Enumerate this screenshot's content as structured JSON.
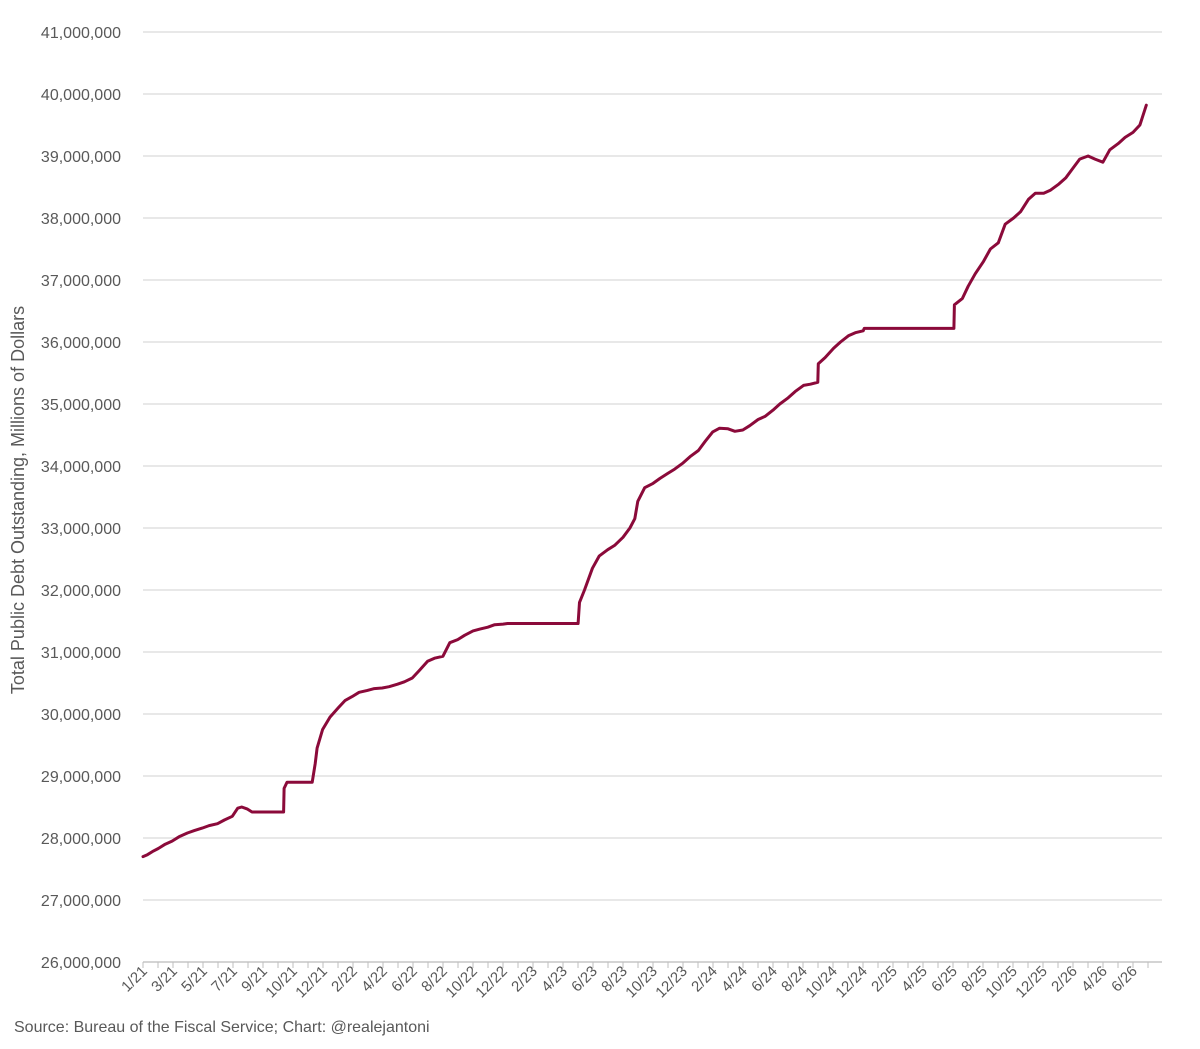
{
  "chart_data": {
    "type": "line",
    "title": "",
    "xlabel": "",
    "ylabel": "Total Public Debt Outstanding, Millions of Dollars",
    "source": "Source: Bureau of the Fiscal Service; Chart: @realejantoni",
    "ylim": [
      26000000,
      41000000
    ],
    "y_ticks": [
      "26,000,000",
      "27,000,000",
      "28,000,000",
      "29,000,000",
      "30,000,000",
      "31,000,000",
      "32,000,000",
      "33,000,000",
      "34,000,000",
      "35,000,000",
      "36,000,000",
      "37,000,000",
      "38,000,000",
      "39,000,000",
      "40,000,000",
      "41,000,000"
    ],
    "x_ticks": [
      "1/21",
      "3/21",
      "5/21",
      "7/21",
      "9/21",
      "10/21",
      "12/21",
      "2/22",
      "4/22",
      "6/22",
      "8/22",
      "10/22",
      "12/22",
      "2/23",
      "4/23",
      "6/23",
      "8/23",
      "10/23",
      "12/23",
      "2/24",
      "4/24",
      "6/24",
      "8/24",
      "10/24",
      "12/24",
      "2/25",
      "4/25",
      "6/25",
      "8/25",
      "10/25",
      "12/25",
      "2/26",
      "4/26",
      "6/26"
    ],
    "grid": true,
    "legend": "none",
    "line_color": "#8b0a3a",
    "series": [
      {
        "x": [
          "2021-01-01",
          "2021-01-10",
          "2021-01-20",
          "2021-02-01",
          "2021-02-15",
          "2021-03-01",
          "2021-03-15",
          "2021-04-01",
          "2021-04-15",
          "2021-05-01",
          "2021-05-15",
          "2021-06-01",
          "2021-06-15",
          "2021-07-01",
          "2021-07-12",
          "2021-07-20",
          "2021-07-31",
          "2021-08-10",
          "2021-08-31",
          "2021-09-20",
          "2021-10-13",
          "2021-10-14",
          "2021-10-20",
          "2021-11-15",
          "2021-12-01",
          "2021-12-10",
          "2021-12-16",
          "2021-12-20",
          "2021-12-31",
          "2022-01-15",
          "2022-02-01",
          "2022-02-15",
          "2022-03-01",
          "2022-03-15",
          "2022-04-01",
          "2022-04-15",
          "2022-05-01",
          "2022-05-15",
          "2022-06-01",
          "2022-06-15",
          "2022-07-01",
          "2022-07-15",
          "2022-08-01",
          "2022-08-15",
          "2022-09-01",
          "2022-09-15",
          "2022-10-01",
          "2022-10-15",
          "2022-11-01",
          "2022-11-15",
          "2022-12-01",
          "2022-12-15",
          "2023-01-01",
          "2023-01-10",
          "2023-01-19",
          "2023-02-15",
          "2023-03-15",
          "2023-04-15",
          "2023-05-15",
          "2023-06-02",
          "2023-06-05",
          "2023-06-15",
          "2023-07-01",
          "2023-07-15",
          "2023-08-01",
          "2023-08-15",
          "2023-09-01",
          "2023-09-15",
          "2023-09-25",
          "2023-10-01",
          "2023-10-15",
          "2023-11-01",
          "2023-11-15",
          "2023-12-01",
          "2023-12-15",
          "2024-01-01",
          "2024-01-15",
          "2024-02-01",
          "2024-02-15",
          "2024-03-01",
          "2024-03-15",
          "2024-04-01",
          "2024-04-15",
          "2024-05-01",
          "2024-05-15",
          "2024-06-01",
          "2024-06-15",
          "2024-07-01",
          "2024-07-15",
          "2024-08-01",
          "2024-08-15",
          "2024-09-01",
          "2024-09-15",
          "2024-09-30",
          "2024-10-01",
          "2024-10-15",
          "2024-11-01",
          "2024-11-15",
          "2024-12-01",
          "2024-12-15",
          "2024-12-31",
          "2025-01-02",
          "2025-01-15",
          "2025-02-15",
          "2025-03-15",
          "2025-04-15",
          "2025-05-15",
          "2025-06-15",
          "2025-07-03",
          "2025-07-04",
          "2025-07-20",
          "2025-08-01",
          "2025-08-15",
          "2025-09-01",
          "2025-09-15",
          "2025-10-01",
          "2025-10-15",
          "2025-11-01",
          "2025-11-15",
          "2025-12-01",
          "2025-12-15",
          "2026-01-01",
          "2026-01-15",
          "2026-02-01",
          "2026-02-15",
          "2026-03-01",
          "2026-03-15",
          "2026-04-01",
          "2026-04-15",
          "2026-05-01",
          "2026-05-15",
          "2026-06-01",
          "2026-06-15",
          "2026-07-01",
          "2026-07-15",
          "2026-07-28"
        ],
        "y": [
          27700000,
          27730000,
          27780000,
          27830000,
          27900000,
          27950000,
          28020000,
          28080000,
          28120000,
          28160000,
          28200000,
          28230000,
          28290000,
          28350000,
          28480000,
          28500000,
          28470000,
          28420000,
          28420000,
          28420000,
          28420000,
          28800000,
          28900000,
          28900000,
          28900000,
          28900000,
          29200000,
          29450000,
          29750000,
          29950000,
          30100000,
          30220000,
          30280000,
          30350000,
          30380000,
          30410000,
          30420000,
          30440000,
          30480000,
          30520000,
          30580000,
          30700000,
          30850000,
          30900000,
          30930000,
          31150000,
          31200000,
          31270000,
          31340000,
          31370000,
          31400000,
          31440000,
          31450000,
          31460000,
          31460000,
          31460000,
          31460000,
          31460000,
          31460000,
          31460000,
          31800000,
          32000000,
          32350000,
          32550000,
          32650000,
          32720000,
          32850000,
          33000000,
          33150000,
          33430000,
          33650000,
          33720000,
          33800000,
          33880000,
          33950000,
          34050000,
          34150000,
          34250000,
          34400000,
          34550000,
          34610000,
          34600000,
          34560000,
          34580000,
          34650000,
          34750000,
          34800000,
          34900000,
          35000000,
          35100000,
          35200000,
          35300000,
          35320000,
          35350000,
          35650000,
          35750000,
          35900000,
          36000000,
          36100000,
          36150000,
          36180000,
          36220000,
          36220000,
          36220000,
          36220000,
          36220000,
          36220000,
          36220000,
          36220000,
          36600000,
          36700000,
          36900000,
          37100000,
          37300000,
          37500000,
          37600000,
          37900000,
          38000000,
          38100000,
          38300000,
          38400000,
          38400000,
          38450000,
          38550000,
          38650000,
          38800000,
          38950000,
          39000000,
          38950000,
          38900000,
          39100000,
          39200000,
          39300000,
          39380000,
          39500000,
          39820000
        ]
      }
    ]
  }
}
